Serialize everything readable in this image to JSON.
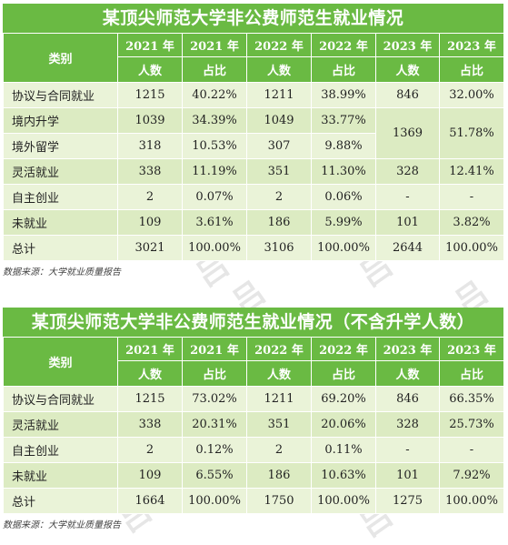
{
  "source_note": "数据来源：大学就业质量报告",
  "table1": {
    "title": "某顶尖师范大学非公费师范生就业情况",
    "header_category": "类别",
    "years": [
      "2021 年",
      "2021 年",
      "2022 年",
      "2022 年",
      "2023 年",
      "2023 年"
    ],
    "subheaders": [
      "人数",
      "占比",
      "人数",
      "占比",
      "人数",
      "占比"
    ],
    "rows": [
      {
        "label": "协议与合同就业",
        "c": [
          "1215",
          "40.22%",
          "1211",
          "38.99%",
          "846",
          "32.00%"
        ]
      },
      {
        "label": "境内升学",
        "c": [
          "1039",
          "34.39%",
          "1049",
          "33.77%"
        ]
      },
      {
        "label": "境外留学",
        "c": [
          "318",
          "10.53%",
          "307",
          "9.88%"
        ]
      },
      {
        "label": "灵活就业",
        "c": [
          "338",
          "11.19%",
          "351",
          "11.30%",
          "328",
          "12.41%"
        ]
      },
      {
        "label": "自主创业",
        "c": [
          "2",
          "0.07%",
          "2",
          "0.06%",
          "-",
          "-"
        ]
      },
      {
        "label": "未就业",
        "c": [
          "109",
          "3.61%",
          "186",
          "5.99%",
          "101",
          "3.82%"
        ]
      },
      {
        "label": "总计",
        "c": [
          "3021",
          "100.00%",
          "3106",
          "100.00%",
          "2644",
          "100.00%"
        ]
      }
    ],
    "merged_2023": [
      "1369",
      "51.78%"
    ]
  },
  "table2": {
    "title": "某顶尖师范大学非公费师范生就业情况（不含升学人数）",
    "header_category": "类别",
    "years": [
      "2021 年",
      "2021 年",
      "2022 年",
      "2022 年",
      "2023 年",
      "2023 年"
    ],
    "subheaders": [
      "人数",
      "占比",
      "人数",
      "占比",
      "人数",
      "占比"
    ],
    "rows": [
      {
        "label": "协议与合同就业",
        "c": [
          "1215",
          "73.02%",
          "1211",
          "69.20%",
          "846",
          "66.35%"
        ]
      },
      {
        "label": "灵活就业",
        "c": [
          "338",
          "20.31%",
          "351",
          "20.06%",
          "328",
          "25.73%"
        ]
      },
      {
        "label": "自主创业",
        "c": [
          "2",
          "0.12%",
          "2",
          "0.11%",
          "-",
          "-"
        ]
      },
      {
        "label": "未就业",
        "c": [
          "109",
          "6.55%",
          "186",
          "10.63%",
          "101",
          "7.92%"
        ]
      },
      {
        "label": "总计",
        "c": [
          "1664",
          "100.00%",
          "1750",
          "100.00%",
          "1275",
          "100.00%"
        ]
      }
    ]
  }
}
